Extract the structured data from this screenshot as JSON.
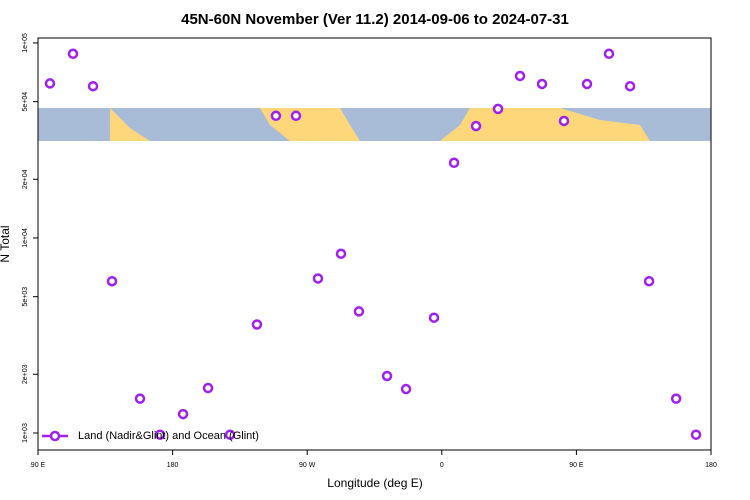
{
  "chart_data": {
    "type": "scatter",
    "title": "45N-60N November (Ver 11.2)   2014-09-06 to 2024-07-31",
    "x_label": "Longitude (deg E)",
    "y_label": "N Total",
    "log_y": true,
    "legend": "bottom left",
    "xlim": [
      90,
      540
    ],
    "xticks": [
      {
        "value": 90,
        "label": "90 E"
      },
      180,
      {
        "value": 270,
        "label": "90 W"
      },
      {
        "value": 360,
        "label": "0"
      },
      {
        "value": 450,
        "label": "90 E"
      },
      {
        "value": 540,
        "label": "180"
      }
    ],
    "ylim": [
      818,
      106000
    ],
    "yticks": [
      {
        "value": 1000,
        "label": "1e+03"
      },
      {
        "value": 2000,
        "label": "2e+03"
      },
      {
        "value": 5000,
        "label": "5e+03"
      },
      {
        "value": 10000,
        "label": "1e+04"
      },
      {
        "value": 20000,
        "label": "2e+04"
      },
      {
        "value": 50000,
        "label": "5e+04"
      },
      {
        "value": 100000,
        "label": "1e+05"
      }
    ],
    "series": [
      {
        "name": "Land (Nadir&Glint) and Ocean (Glint)",
        "color": "#a020f0",
        "x": [
          98,
          113.4,
          126.8,
          139.5,
          158.2,
          171.6,
          187,
          203.7,
          218.4,
          236.4,
          249.1,
          262.5,
          277.2,
          292.6,
          304.6,
          323.4,
          336.1,
          354.8,
          368.2,
          382.9,
          397.6,
          412.3,
          427,
          441.7,
          457.1,
          471.8,
          485.9,
          498.6,
          516.7,
          530
        ],
        "values": [
          62000,
          88000,
          60000,
          6000,
          1500,
          980,
          1250,
          1700,
          980,
          3600,
          42300,
          42300,
          6200,
          8300,
          4200,
          1960,
          1680,
          3900,
          24300,
          37500,
          45900,
          67700,
          61600,
          39800,
          61600,
          88000,
          60000,
          6000,
          1500,
          980
        ]
      }
    ]
  }
}
